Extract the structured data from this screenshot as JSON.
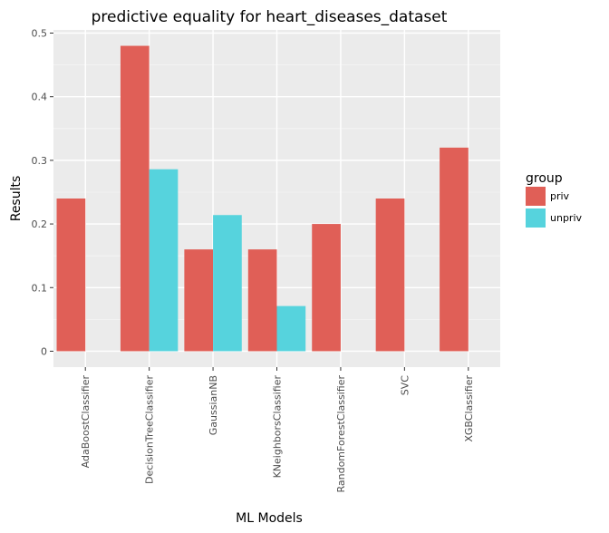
{
  "chart_data": {
    "type": "bar",
    "title": "predictive equality for heart_diseases_dataset",
    "xlabel": "ML Models",
    "ylabel": "Results",
    "categories": [
      "AdaBoostClassifier",
      "DecisionTreeClassifier",
      "GaussianNB",
      "KNeighborsClassifier",
      "RandomForestClassifier",
      "SVC",
      "XGBClassifier"
    ],
    "series": [
      {
        "name": "priv",
        "color": "#e05f57",
        "values": [
          0.24,
          0.48,
          0.16,
          0.16,
          0.2,
          0.24,
          0.32
        ]
      },
      {
        "name": "unpriv",
        "color": "#56d3dd",
        "values": [
          0,
          0.286,
          0.214,
          0.071,
          0,
          0,
          0
        ]
      }
    ],
    "ylim": [
      -0.025,
      0.505
    ],
    "yticks": [
      0,
      0.1,
      0.2,
      0.3,
      0.4,
      0.5
    ],
    "ytick_labels": [
      "0",
      "0.1",
      "0.2",
      "0.3",
      "0.4",
      "0.5"
    ],
    "grid": true,
    "panel_background": "#ebebeb",
    "legend": {
      "title": "group",
      "position": "right"
    }
  }
}
